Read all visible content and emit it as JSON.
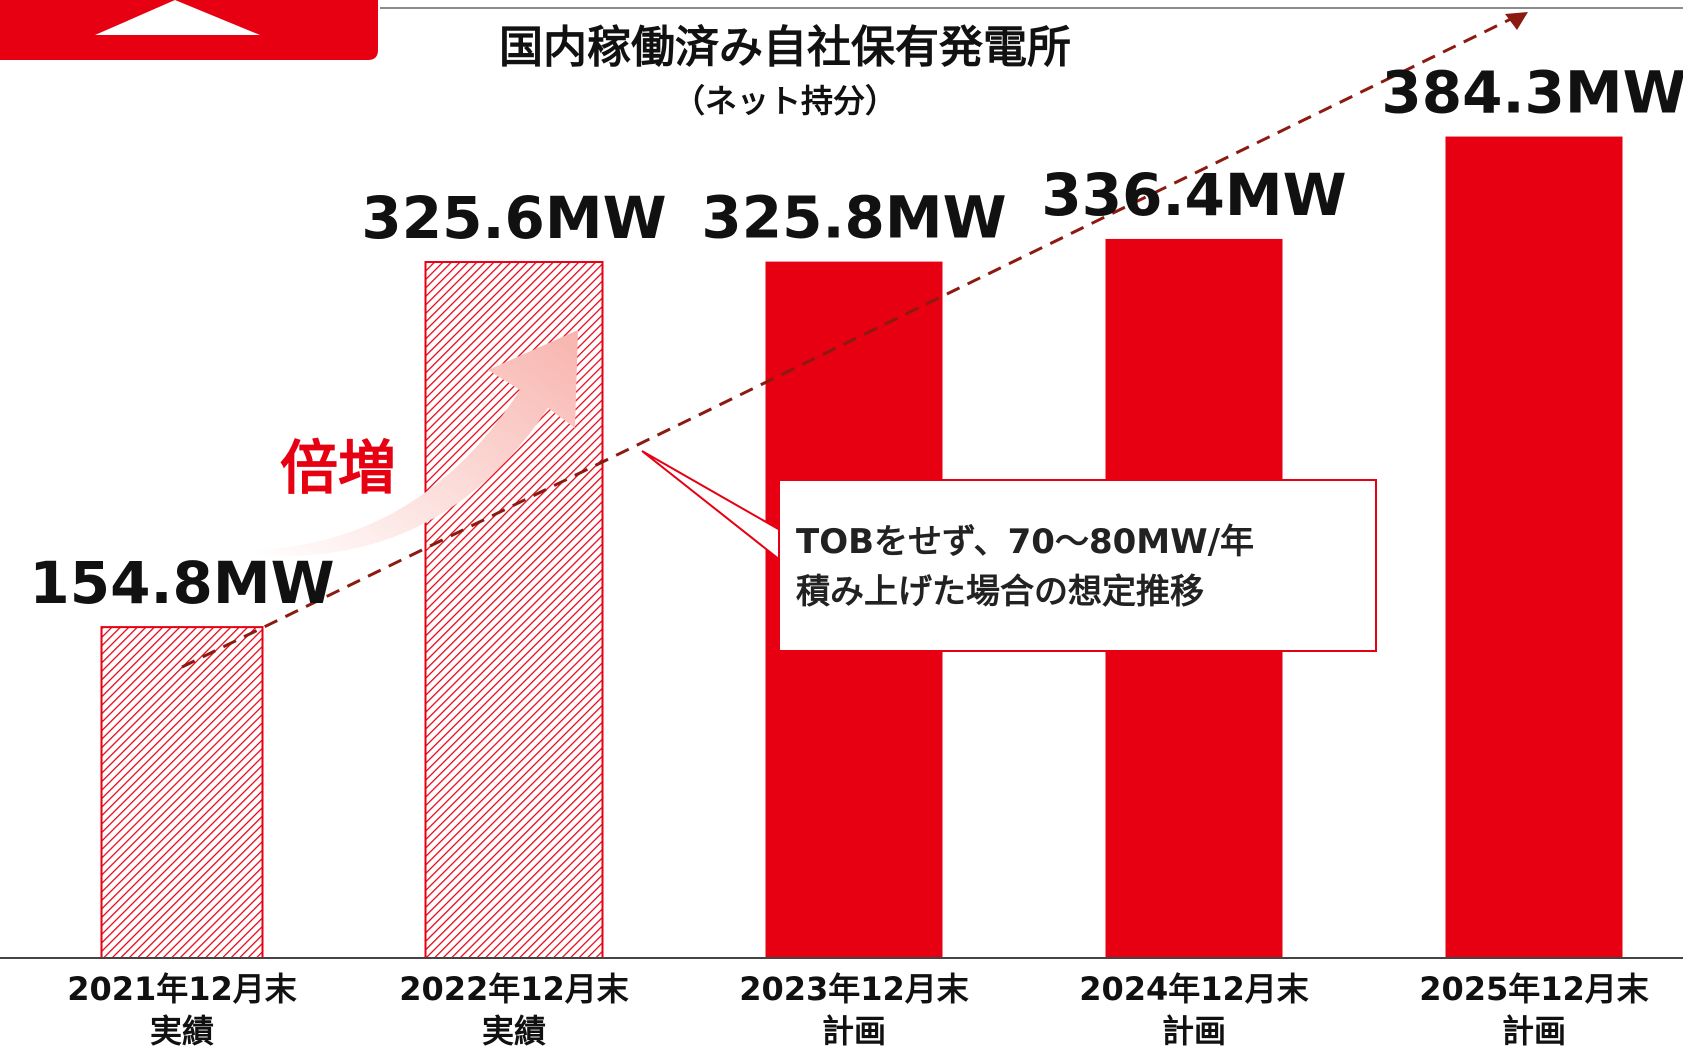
{
  "chart_data": {
    "type": "bar",
    "title": "国内稼働済み自社保有発電所",
    "subtitle": "（ネット持分）",
    "categories": [
      "2021年12月末\n実績",
      "2022年12月末\n実績",
      "2023年12月末\n計画",
      "2024年12月末\n計画",
      "2025年12月末\n計画"
    ],
    "values": [
      154.8,
      325.6,
      325.8,
      336.4,
      384.3
    ],
    "value_labels": [
      "154.8MW",
      "325.6MW",
      "325.8MW",
      "336.4MW",
      "384.3MW"
    ],
    "hatched": [
      true,
      true,
      false,
      false,
      false
    ],
    "color": "#e60012",
    "ylim": [
      0,
      400
    ],
    "annotations": [
      "倍増",
      "TOBをせず、70～80MW/年\n積み上げた場合の想定推移"
    ]
  }
}
